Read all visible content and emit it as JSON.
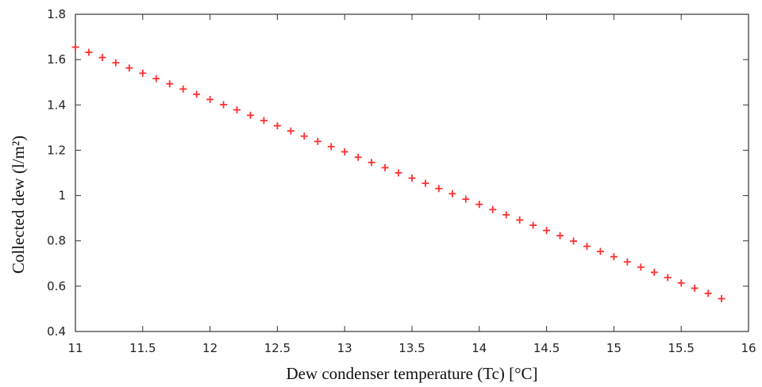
{
  "chart_data": {
    "type": "scatter",
    "title": "",
    "xlabel": "Dew condenser temperature (Tc) [°C]",
    "ylabel": "Collected dew (l/m²)",
    "xlim": [
      11,
      16
    ],
    "ylim": [
      0.4,
      1.8
    ],
    "x_ticks": [
      "11",
      "11.5",
      "12",
      "12.5",
      "13",
      "13.5",
      "14",
      "14.5",
      "15",
      "15.5",
      "16"
    ],
    "y_ticks": [
      "0.4",
      "0.6",
      "0.8",
      "1",
      "1.2",
      "1.4",
      "1.6",
      "1.8"
    ],
    "grid": false,
    "marker": "plus",
    "color": "#ff3030",
    "series": [
      {
        "x": [
          11.0,
          11.1,
          11.2,
          11.3,
          11.4,
          11.5,
          11.6,
          11.7,
          11.8,
          11.9,
          12.0,
          12.1,
          12.2,
          12.3,
          12.4,
          12.5,
          12.6,
          12.7,
          12.8,
          12.9,
          13.0,
          13.1,
          13.2,
          13.3,
          13.4,
          13.5,
          13.6,
          13.7,
          13.8,
          13.9,
          14.0,
          14.1,
          14.2,
          14.3,
          14.4,
          14.5,
          14.6,
          14.7,
          14.8,
          14.9,
          15.0,
          15.1,
          15.2,
          15.3,
          15.4,
          15.5,
          15.6,
          15.7,
          15.8
        ],
        "y": [
          1.655,
          1.632,
          1.609,
          1.586,
          1.563,
          1.54,
          1.516,
          1.493,
          1.47,
          1.447,
          1.424,
          1.401,
          1.378,
          1.354,
          1.331,
          1.308,
          1.285,
          1.262,
          1.239,
          1.216,
          1.193,
          1.169,
          1.146,
          1.123,
          1.1,
          1.077,
          1.054,
          1.031,
          1.008,
          0.984,
          0.961,
          0.938,
          0.915,
          0.892,
          0.869,
          0.846,
          0.823,
          0.799,
          0.776,
          0.753,
          0.73,
          0.707,
          0.684,
          0.661,
          0.638,
          0.614,
          0.591,
          0.568,
          0.545
        ]
      }
    ]
  }
}
